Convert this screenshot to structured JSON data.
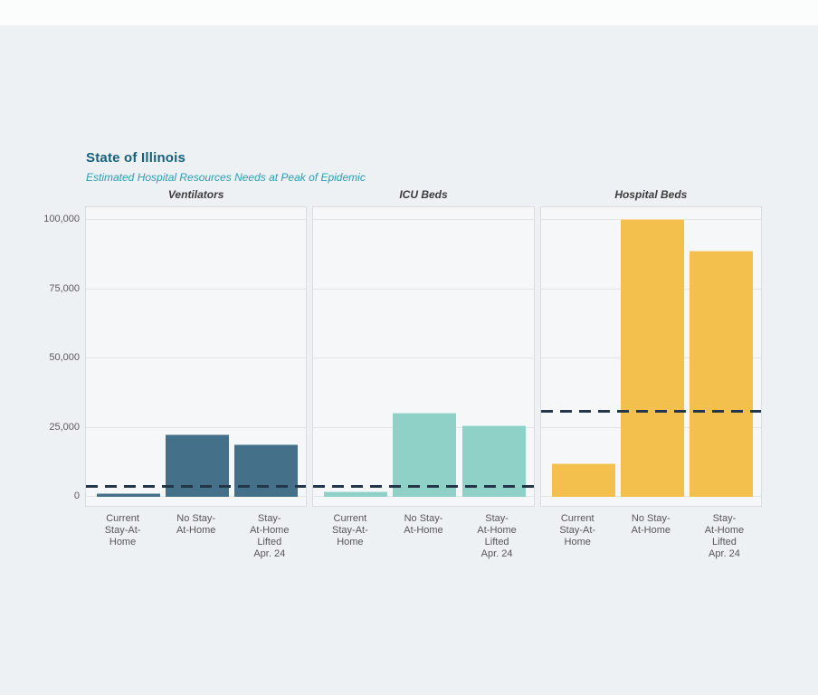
{
  "page": {
    "background_color": "#edf1f4",
    "top_strip_color": "#fbfdfd",
    "panel_background_color": "#f5f7f9"
  },
  "header": {
    "title": "State of Illinois",
    "subtitle": "Estimated Hospital Resources Needs at Peak of Epidemic",
    "title_color": "#17607a",
    "subtitle_color": "#2b9db1"
  },
  "chart_data": {
    "type": "bar",
    "layout": "3 small-multiple panels sharing one y axis, dashed capacity reference line per panel",
    "categories": [
      "Current Stay-At-Home",
      "No Stay-At-Home",
      "Stay-At-Home Lifted Apr. 24"
    ],
    "categories_display": [
      "Current\nStay-At-\nHome",
      "No Stay-\nAt-Home",
      "Stay-\nAt-Home\nLifted\nApr. 24"
    ],
    "y_ticks": [
      0,
      25000,
      50000,
      75000,
      100000
    ],
    "ylim": [
      0,
      105000
    ],
    "grid": true,
    "panels": [
      {
        "title": "Ventilators",
        "color": "#44708a",
        "values": [
          1200,
          22500,
          19000
        ],
        "capacity_line": 3800
      },
      {
        "title": "ICU Beds",
        "color": "#8fd0c7",
        "values": [
          2000,
          30500,
          26000
        ],
        "capacity_line": 3800
      },
      {
        "title": "Hospital Beds",
        "color": "#f3bf4d",
        "values": [
          12000,
          100500,
          89000
        ],
        "capacity_line": 31000
      }
    ],
    "capacity_line_style": {
      "color": "#24364a",
      "pattern": "dashed"
    }
  }
}
